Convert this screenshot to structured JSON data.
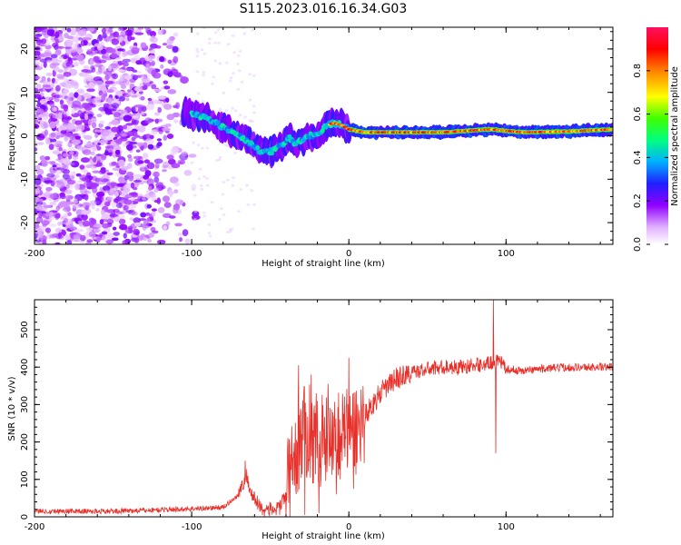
{
  "title": "S115.2023.016.16.34.G03",
  "chart_data": [
    {
      "type": "heatmap",
      "xlabel": "Height of straight line (km)",
      "ylabel": "Frequency (Hz)",
      "xlim": [
        -200,
        168
      ],
      "ylim": [
        -25,
        25
      ],
      "x_ticks": [
        -200,
        -100,
        0,
        100
      ],
      "y_ticks": [
        -20,
        -10,
        0,
        10,
        20
      ],
      "colorbar": {
        "label": "Normalized spectral amplitude",
        "range": [
          0,
          1
        ],
        "ticks": [
          0.0,
          0.2,
          0.4,
          0.6,
          0.8
        ],
        "colormap": [
          "#ffffff",
          "#e0b0ff",
          "#9000ff",
          "#2020ff",
          "#00b0ff",
          "#00ff80",
          "#40ff00",
          "#ffff00",
          "#ff8000",
          "#ff0000",
          "#ff1060"
        ]
      },
      "ridge": {
        "description_points": [
          [
            -100,
            5
          ],
          [
            -90,
            4
          ],
          [
            -80,
            2
          ],
          [
            -70,
            0
          ],
          [
            -62,
            -2
          ],
          [
            -55,
            -4
          ],
          [
            -48,
            -3.5
          ],
          [
            -42,
            -2
          ],
          [
            -38,
            0
          ],
          [
            -35,
            -2
          ],
          [
            -30,
            -1
          ],
          [
            -25,
            0
          ],
          [
            -20,
            0
          ],
          [
            -15,
            2
          ],
          [
            -10,
            3
          ],
          [
            -5,
            2.5
          ],
          [
            0,
            1.5
          ],
          [
            10,
            0.8
          ],
          [
            30,
            0.8
          ],
          [
            60,
            0.8
          ],
          [
            90,
            1.5
          ],
          [
            110,
            0.8
          ],
          [
            140,
            1
          ],
          [
            168,
            1.5
          ]
        ]
      },
      "grid": false
    },
    {
      "type": "line",
      "xlabel": "Height of straight line (km)",
      "ylabel": "SNR (10 * v/v)",
      "xlim": [
        -200,
        168
      ],
      "ylim": [
        0,
        580
      ],
      "x_ticks": [
        -200,
        -100,
        0,
        100
      ],
      "y_ticks": [
        0,
        100,
        200,
        300,
        400,
        500
      ],
      "series": [
        {
          "color": "#e8302a",
          "envelope": [
            [
              -200,
              15
            ],
            [
              -150,
              15
            ],
            [
              -110,
              20
            ],
            [
              -80,
              25
            ],
            [
              -70,
              60
            ],
            [
              -65,
              110
            ],
            [
              -62,
              60
            ],
            [
              -55,
              20
            ],
            [
              -45,
              20
            ],
            [
              -40,
              60
            ],
            [
              -35,
              150
            ],
            [
              -30,
              220
            ],
            [
              -25,
              230
            ],
            [
              -20,
              200
            ],
            [
              -15,
              220
            ],
            [
              -10,
              240
            ],
            [
              -5,
              220
            ],
            [
              0,
              240
            ],
            [
              5,
              230
            ],
            [
              10,
              270
            ],
            [
              20,
              330
            ],
            [
              30,
              370
            ],
            [
              40,
              385
            ],
            [
              50,
              395
            ],
            [
              60,
              400
            ],
            [
              70,
              400
            ],
            [
              80,
              405
            ],
            [
              90,
              410
            ],
            [
              95,
              420
            ],
            [
              100,
              395
            ],
            [
              110,
              390
            ],
            [
              120,
              395
            ],
            [
              140,
              400
            ],
            [
              168,
              400
            ]
          ],
          "spikes": [
            [
              -66,
              150
            ],
            [
              -58,
              20
            ],
            [
              -44,
              5
            ],
            [
              -32,
              405
            ],
            [
              -28,
              5
            ],
            [
              -24,
              380
            ],
            [
              -19,
              10
            ],
            [
              -13,
              300
            ],
            [
              -8,
              60
            ],
            [
              0,
              425
            ],
            [
              3,
              75
            ],
            [
              92,
              580
            ],
            [
              93.5,
              170
            ],
            [
              95,
              430
            ]
          ]
        }
      ],
      "grid": false
    }
  ]
}
